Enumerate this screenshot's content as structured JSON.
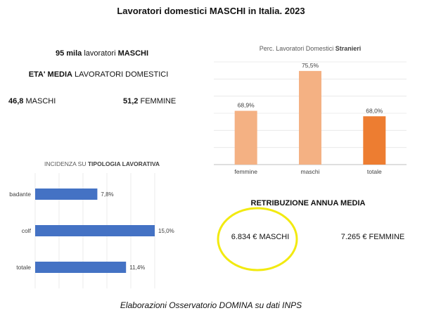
{
  "title": "Lavoratori domestici MASCHI in Italia. 2023",
  "workers": {
    "value": "95 mila",
    "text": " lavoratori ",
    "group": "MASCHI"
  },
  "avg_age": {
    "title_bold": "ETA' MEDIA",
    "title_rest": " LAVORATORI DOMESTICI",
    "male_value": "46,8",
    "male_label": " MASCHI",
    "female_value": "51,2",
    "female_label": " FEMMINE"
  },
  "salary": {
    "title": "RETRIBUZIONE ANNUA MEDIA",
    "male": "6.834  € MASCHI",
    "female": "7.265 € FEMMINE"
  },
  "footer": "Elaborazioni Osservatorio DOMINA su dati INPS",
  "colors": {
    "bar_light": "#f4b183",
    "bar_dark": "#ed7d31",
    "bar_blue": "#4472c4",
    "highlight": "#f2ea10"
  },
  "chart_data": [
    {
      "type": "bar",
      "title_plain": "Perc. Lavoratori Domestici ",
      "title_bold": "Stranieri",
      "categories": [
        "femmine",
        "maschi",
        "totale"
      ],
      "values": [
        68.9,
        75.5,
        68.0
      ],
      "data_labels": [
        "68,9%",
        "75,5%",
        "68,0%"
      ],
      "ylim": [
        60,
        77
      ],
      "grid": true
    },
    {
      "type": "bar",
      "orientation": "horizontal",
      "title_plain": "INCIDENZA SU ",
      "title_bold": "TIPOLOGIA LAVORATIVA",
      "categories": [
        "badante",
        "colf",
        "totale"
      ],
      "values": [
        7.8,
        15.0,
        11.4
      ],
      "data_labels": [
        "7,8%",
        "15,0%",
        "11,4%"
      ],
      "xlim": [
        0,
        15
      ],
      "grid": true
    }
  ]
}
